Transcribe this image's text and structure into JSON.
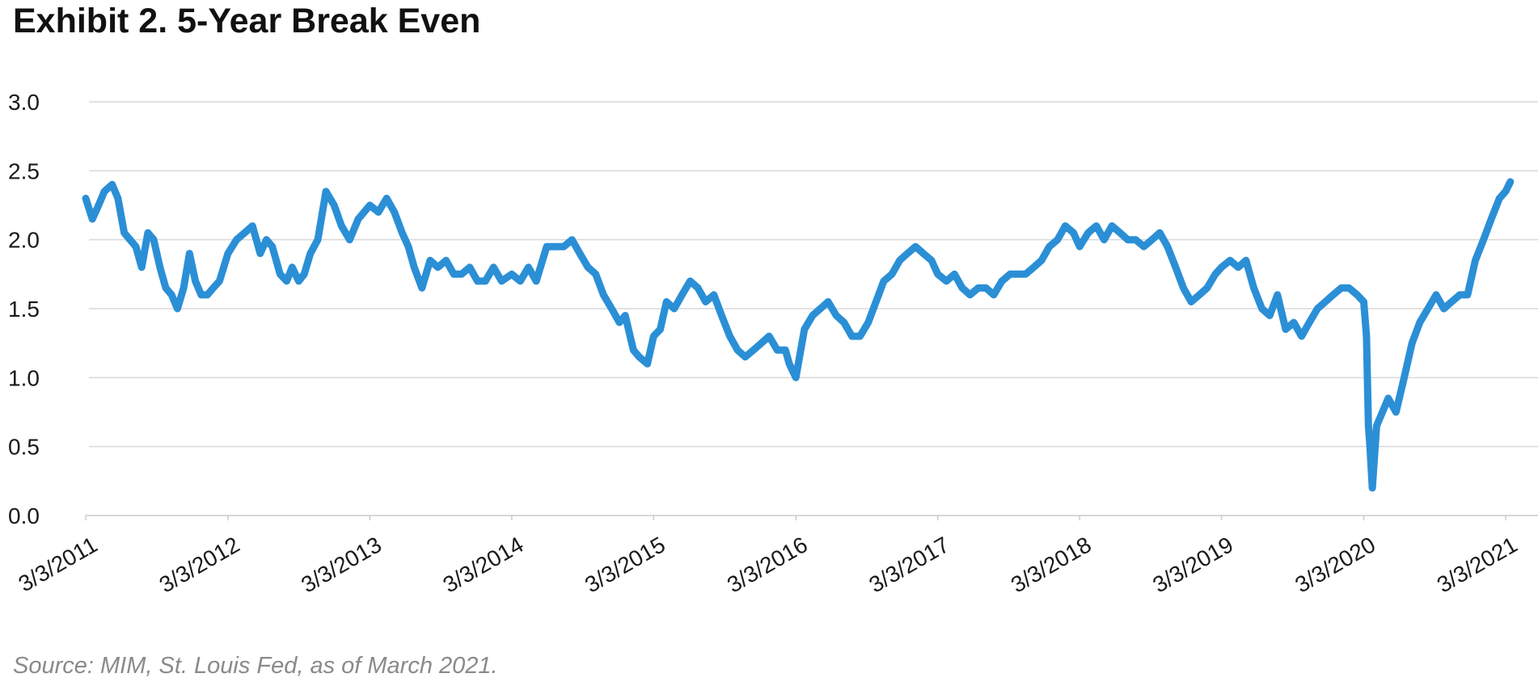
{
  "title": "Exhibit 2. 5-Year Break Even",
  "source": "Source: MIM, St. Louis Fed, as of March 2021.",
  "colors": {
    "series": "#2b8fd6",
    "grid": "#d9d9d9",
    "axis": "#cccccc",
    "text": "#1a1a1a"
  },
  "chart_data": {
    "type": "line",
    "title": "Exhibit 2. 5-Year Break Even",
    "xlabel": "",
    "ylabel": "",
    "ylim": [
      0,
      3
    ],
    "yticks": [
      "0.0",
      "0.5",
      "1.0",
      "1.5",
      "2.0",
      "2.5",
      "3.0"
    ],
    "xlim": [
      "2011-03-03",
      "2021-03-03"
    ],
    "xticks": [
      "3/3/2011",
      "3/3/2012",
      "3/3/2013",
      "3/3/2014",
      "3/3/2015",
      "3/3/2016",
      "3/3/2017",
      "3/3/2018",
      "3/3/2019",
      "3/3/2020",
      "3/3/2021"
    ],
    "grid": true,
    "legend": "none",
    "series": [
      {
        "x": [
          "2011-03-03",
          "2011-03-20",
          "2011-04-05",
          "2011-04-20",
          "2011-05-10",
          "2011-05-25",
          "2011-06-10",
          "2011-06-25",
          "2011-07-10",
          "2011-07-25",
          "2011-08-10",
          "2011-08-25",
          "2011-09-10",
          "2011-09-25",
          "2011-10-10",
          "2011-10-25",
          "2011-11-10",
          "2011-11-25",
          "2011-12-10",
          "2011-12-25",
          "2012-01-10",
          "2012-01-25",
          "2012-02-10",
          "2012-03-03",
          "2012-03-25",
          "2012-04-15",
          "2012-05-05",
          "2012-05-25",
          "2012-06-10",
          "2012-06-25",
          "2012-07-15",
          "2012-08-01",
          "2012-08-15",
          "2012-09-01",
          "2012-09-15",
          "2012-10-01",
          "2012-10-20",
          "2012-11-10",
          "2012-12-01",
          "2012-12-20",
          "2013-01-10",
          "2013-02-01",
          "2013-03-03",
          "2013-03-25",
          "2013-04-15",
          "2013-05-05",
          "2013-05-25",
          "2013-06-10",
          "2013-06-25",
          "2013-07-15",
          "2013-08-05",
          "2013-08-25",
          "2013-09-15",
          "2013-10-05",
          "2013-10-25",
          "2013-11-15",
          "2013-12-05",
          "2013-12-25",
          "2014-01-15",
          "2014-02-05",
          "2014-03-03",
          "2014-03-25",
          "2014-04-15",
          "2014-05-05",
          "2014-06-01",
          "2014-06-25",
          "2014-07-15",
          "2014-08-05",
          "2014-08-25",
          "2014-09-15",
          "2014-10-05",
          "2014-10-25",
          "2014-11-15",
          "2014-12-05",
          "2014-12-20",
          "2015-01-10",
          "2015-01-25",
          "2015-02-15",
          "2015-03-03",
          "2015-03-20",
          "2015-04-05",
          "2015-04-25",
          "2015-05-15",
          "2015-06-05",
          "2015-06-25",
          "2015-07-15",
          "2015-08-05",
          "2015-08-25",
          "2015-09-15",
          "2015-10-05",
          "2015-10-25",
          "2015-11-15",
          "2015-12-05",
          "2015-12-25",
          "2016-01-15",
          "2016-02-05",
          "2016-02-15",
          "2016-03-03",
          "2016-03-25",
          "2016-04-15",
          "2016-05-05",
          "2016-05-25",
          "2016-06-15",
          "2016-07-05",
          "2016-07-25",
          "2016-08-15",
          "2016-09-05",
          "2016-09-25",
          "2016-10-15",
          "2016-11-05",
          "2016-11-25",
          "2016-12-15",
          "2017-01-05",
          "2017-01-25",
          "2017-02-15",
          "2017-03-03",
          "2017-03-25",
          "2017-04-15",
          "2017-05-05",
          "2017-05-25",
          "2017-06-15",
          "2017-07-05",
          "2017-07-25",
          "2017-08-15",
          "2017-09-05",
          "2017-09-25",
          "2017-10-15",
          "2017-11-05",
          "2017-11-25",
          "2017-12-15",
          "2018-01-05",
          "2018-01-25",
          "2018-02-15",
          "2018-03-03",
          "2018-03-25",
          "2018-04-15",
          "2018-05-05",
          "2018-05-25",
          "2018-06-15",
          "2018-07-05",
          "2018-07-25",
          "2018-08-15",
          "2018-09-05",
          "2018-09-25",
          "2018-10-15",
          "2018-11-05",
          "2018-11-25",
          "2018-12-15",
          "2019-01-05",
          "2019-01-25",
          "2019-02-15",
          "2019-03-03",
          "2019-03-25",
          "2019-04-15",
          "2019-05-05",
          "2019-05-25",
          "2019-06-15",
          "2019-07-05",
          "2019-07-25",
          "2019-08-15",
          "2019-09-05",
          "2019-09-25",
          "2019-10-15",
          "2019-11-05",
          "2019-11-25",
          "2019-12-15",
          "2020-01-05",
          "2020-01-25",
          "2020-02-15",
          "2020-03-03",
          "2020-03-10",
          "2020-03-15",
          "2020-03-19",
          "2020-03-25",
          "2020-04-05",
          "2020-04-20",
          "2020-05-05",
          "2020-05-25",
          "2020-06-15",
          "2020-07-05",
          "2020-07-25",
          "2020-08-15",
          "2020-09-05",
          "2020-09-25",
          "2020-10-15",
          "2020-11-05",
          "2020-11-25",
          "2020-12-15",
          "2021-01-05",
          "2021-01-25",
          "2021-02-15",
          "2021-03-03",
          "2021-03-15"
        ],
        "values": [
          2.3,
          2.15,
          2.25,
          2.35,
          2.4,
          2.3,
          2.05,
          2.0,
          1.95,
          1.8,
          2.05,
          2.0,
          1.8,
          1.65,
          1.6,
          1.5,
          1.65,
          1.9,
          1.7,
          1.6,
          1.6,
          1.65,
          1.7,
          1.9,
          2.0,
          2.05,
          2.1,
          1.9,
          2.0,
          1.95,
          1.75,
          1.7,
          1.8,
          1.7,
          1.75,
          1.9,
          2.0,
          2.35,
          2.25,
          2.1,
          2.0,
          2.15,
          2.25,
          2.2,
          2.3,
          2.2,
          2.05,
          1.95,
          1.8,
          1.65,
          1.85,
          1.8,
          1.85,
          1.75,
          1.75,
          1.8,
          1.7,
          1.7,
          1.8,
          1.7,
          1.75,
          1.7,
          1.8,
          1.7,
          1.95,
          1.95,
          1.95,
          2.0,
          1.9,
          1.8,
          1.75,
          1.6,
          1.5,
          1.4,
          1.45,
          1.2,
          1.15,
          1.1,
          1.3,
          1.35,
          1.55,
          1.5,
          1.6,
          1.7,
          1.65,
          1.55,
          1.6,
          1.45,
          1.3,
          1.2,
          1.15,
          1.2,
          1.25,
          1.3,
          1.2,
          1.2,
          1.1,
          1.0,
          1.35,
          1.45,
          1.5,
          1.55,
          1.45,
          1.4,
          1.3,
          1.3,
          1.4,
          1.55,
          1.7,
          1.75,
          1.85,
          1.9,
          1.95,
          1.9,
          1.85,
          1.75,
          1.7,
          1.75,
          1.65,
          1.6,
          1.65,
          1.65,
          1.6,
          1.7,
          1.75,
          1.75,
          1.75,
          1.8,
          1.85,
          1.95,
          2.0,
          2.1,
          2.05,
          1.95,
          2.05,
          2.1,
          2.0,
          2.1,
          2.05,
          2.0,
          2.0,
          1.95,
          2.0,
          2.05,
          1.95,
          1.8,
          1.65,
          1.55,
          1.6,
          1.65,
          1.75,
          1.8,
          1.85,
          1.8,
          1.85,
          1.65,
          1.5,
          1.45,
          1.6,
          1.35,
          1.4,
          1.3,
          1.4,
          1.5,
          1.55,
          1.6,
          1.65,
          1.65,
          1.6,
          1.55,
          1.3,
          0.65,
          0.5,
          0.2,
          0.65,
          0.75,
          0.85,
          0.75,
          1.0,
          1.25,
          1.4,
          1.5,
          1.6,
          1.5,
          1.55,
          1.6,
          1.6,
          1.85,
          2.0,
          2.15,
          2.3,
          2.35,
          2.42
        ]
      }
    ]
  }
}
